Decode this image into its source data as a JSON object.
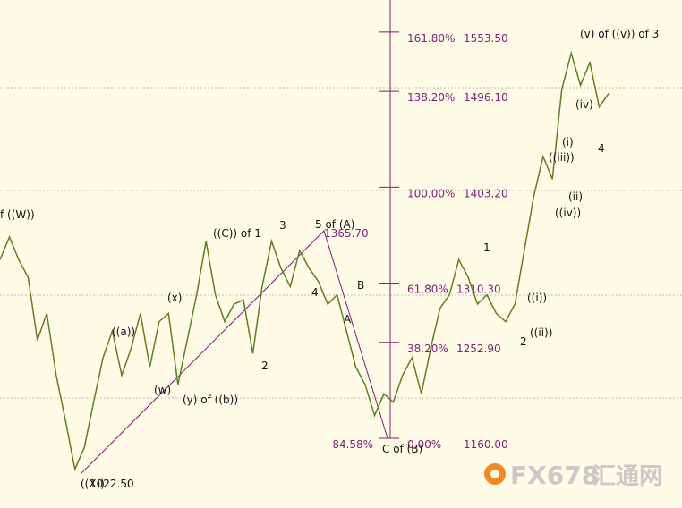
{
  "chart_data": {
    "type": "line",
    "color": "#5f7f1f",
    "ylim": [
      1092.4,
      1584.6
    ],
    "values": [
      1333,
      1355,
      1333,
      1316,
      1255,
      1281,
      1221,
      1177,
      1130,
      1151,
      1195,
      1238,
      1264,
      1221,
      1247,
      1281,
      1229,
      1273,
      1281,
      1212,
      1255,
      1299,
      1351,
      1299,
      1273,
      1290,
      1294,
      1242,
      1307,
      1351,
      1325,
      1307,
      1342,
      1325,
      1312,
      1290,
      1299,
      1264,
      1229,
      1212,
      1182,
      1203,
      1195,
      1221,
      1238,
      1203,
      1247,
      1286,
      1299,
      1333,
      1316,
      1290,
      1299,
      1281,
      1273,
      1290,
      1342,
      1394,
      1433,
      1411,
      1498,
      1533,
      1502,
      1524,
      1481,
      1494
    ],
    "fib_levels": [
      {
        "pct": "161.80%",
        "price": {
          "value": 1553.5,
          "label": "1553.50"
        }
      },
      {
        "pct": "138.20%",
        "price": {
          "value": 1496.1,
          "label": "1496.10"
        }
      },
      {
        "pct": "100.00%",
        "price": {
          "value": 1403.2,
          "label": "1403.20"
        }
      },
      {
        "pct": "61.80%",
        "price": {
          "value": 1310.3,
          "label": "1310.30"
        }
      },
      {
        "pct": "38.20%",
        "price": {
          "value": 1252.9,
          "label": "1252.90"
        }
      },
      {
        "pct": "0.00%",
        "price": {
          "value": 1160,
          "label": "1160.00"
        }
      }
    ],
    "annotations": [
      "f ((W))",
      "((a))",
      "(x)",
      "(w)",
      "(y) of ((b))",
      "((C)) of 1",
      "3",
      "2",
      "5 of (A)",
      "4",
      "B",
      "A",
      "C of (B)",
      "((X))",
      "1022.50",
      "1",
      "((i))",
      "2",
      "((ii))",
      "((iii))",
      "(i)",
      "(ii)",
      "((iv))",
      "(iv)",
      "(v) of ((v)) of 3",
      "4",
      "1365.70",
      "-84.58%"
    ],
    "watermark": [
      "FX678",
      "汇通网"
    ]
  }
}
